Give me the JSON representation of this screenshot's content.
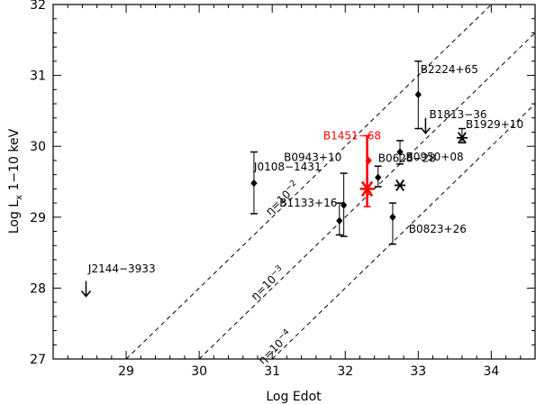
{
  "chart_data": {
    "type": "scatter",
    "title": "",
    "xlabel": "Log Edot",
    "ylabel_main": "Log L",
    "ylabel_sub": "x",
    "ylabel_rest": " 1−10 keV",
    "xlim": [
      28.0,
      34.6
    ],
    "ylim": [
      27.0,
      32.0
    ],
    "x_ticks": [
      29,
      30,
      31,
      32,
      33,
      34
    ],
    "y_ticks": [
      27,
      28,
      29,
      30,
      31,
      32
    ],
    "grid": false,
    "colors": {
      "axis": "#000000",
      "highlight": "#ff0000"
    },
    "lines": [
      {
        "label_prefix": "η=10",
        "label_exp": "−2",
        "label_x": 31.2,
        "efficiency_log": -2
      },
      {
        "label_prefix": "η=10",
        "label_exp": "−3",
        "label_x": 31.0,
        "efficiency_log": -3
      },
      {
        "label_prefix": "η=10",
        "label_exp": "−4",
        "label_x": 31.1,
        "efficiency_log": -4
      }
    ],
    "points": [
      {
        "name": "J0108−1431",
        "x": 30.75,
        "y": 29.48,
        "yerr_lo": 29.05,
        "yerr_hi": 29.92,
        "marker": "diamond",
        "label_dx": 0.0,
        "label_dy": 0.18
      },
      {
        "name": "B0943+10",
        "x": 31.98,
        "y": 29.17,
        "yerr_lo": 28.73,
        "yerr_hi": 29.62,
        "marker": "diamond",
        "label_dx": -0.82,
        "label_dy": 0.62
      },
      {
        "name": "B1133+16",
        "x": 31.92,
        "y": 28.95,
        "yerr_lo": 28.75,
        "yerr_hi": 29.2,
        "marker": "diamond",
        "label_dx": -0.82,
        "label_dy": 0.2
      },
      {
        "name": "B1451−68",
        "x": 32.3,
        "y": 29.4,
        "yerr_lo": 29.15,
        "yerr_hi": 30.15,
        "marker": "star",
        "color": "red",
        "label_dx": -0.6,
        "label_dy": 0.7,
        "extra_point": {
          "x": 32.32,
          "y": 29.8
        }
      },
      {
        "name": "B0628−28",
        "x": 32.45,
        "y": 29.56,
        "yerr_lo": 29.43,
        "yerr_hi": 29.72,
        "marker": "diamond",
        "label_dx": 0.0,
        "label_dy": 0.22
      },
      {
        "name": "B0823+26",
        "x": 32.65,
        "y": 29.0,
        "yerr_lo": 28.62,
        "yerr_hi": 29.2,
        "marker": "diamond",
        "label_dx": 0.22,
        "label_dy": -0.22
      },
      {
        "name": "B0823+26 star",
        "x": 32.75,
        "y": 29.45,
        "marker": "star",
        "no_label": true
      },
      {
        "name": "B0950+08",
        "x": 32.75,
        "y": 29.92,
        "yerr_lo": 29.75,
        "yerr_hi": 30.08,
        "marker": "diamond",
        "label_dx": 0.08,
        "label_dy": -0.12
      },
      {
        "name": "B2224+65",
        "x": 33.0,
        "y": 30.73,
        "yerr_lo": 30.25,
        "yerr_hi": 31.2,
        "marker": "diamond",
        "label_dx": 0.03,
        "label_dy": 0.3
      },
      {
        "name": "B1813−36",
        "x": 33.1,
        "y": 30.4,
        "marker": "uplimit",
        "label_dx": 0.05,
        "label_dy": 0.0
      },
      {
        "name": "B1929+10",
        "x": 33.6,
        "y": 30.12,
        "yerr_lo": 30.05,
        "yerr_hi": 30.25,
        "marker": "star",
        "label_dx": 0.05,
        "label_dy": 0.14
      },
      {
        "name": "J2144−3933",
        "x": 28.45,
        "y": 28.1,
        "marker": "uplimit",
        "label_dx": 0.03,
        "label_dy": 0.12
      }
    ]
  }
}
